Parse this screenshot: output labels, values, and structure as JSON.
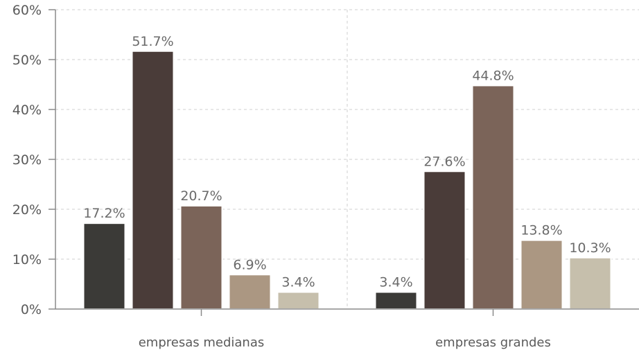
{
  "chart_data": {
    "type": "bar",
    "categories": [
      "empresas medianas",
      "empresas grandes"
    ],
    "series": [
      {
        "values": [
          17.2,
          3.4
        ],
        "color": "#3b3a37"
      },
      {
        "values": [
          51.7,
          27.6
        ],
        "color": "#4a3c39"
      },
      {
        "values": [
          20.7,
          44.8
        ],
        "color": "#7b6459"
      },
      {
        "values": [
          6.9,
          13.8
        ],
        "color": "#ab9782"
      },
      {
        "values": [
          3.4,
          10.3
        ],
        "color": "#c6bfac"
      }
    ],
    "data_labels": [
      [
        "17.2%",
        "3.4%"
      ],
      [
        "51.7%",
        "27.6%"
      ],
      [
        "20.7%",
        "44.8%"
      ],
      [
        "6.9%",
        "13.8%"
      ],
      [
        "3.4%",
        "10.3%"
      ]
    ],
    "y_ticks": [
      {
        "value": 0,
        "label": "0%"
      },
      {
        "value": 10,
        "label": "10%"
      },
      {
        "value": 20,
        "label": "20%"
      },
      {
        "value": 30,
        "label": "30%"
      },
      {
        "value": 40,
        "label": "40%"
      },
      {
        "value": 50,
        "label": "50%"
      },
      {
        "value": 60,
        "label": "60%"
      }
    ],
    "ylim": [
      0,
      60
    ],
    "title": "",
    "xlabel": "",
    "ylabel": "",
    "grid": true,
    "legend": "none"
  }
}
